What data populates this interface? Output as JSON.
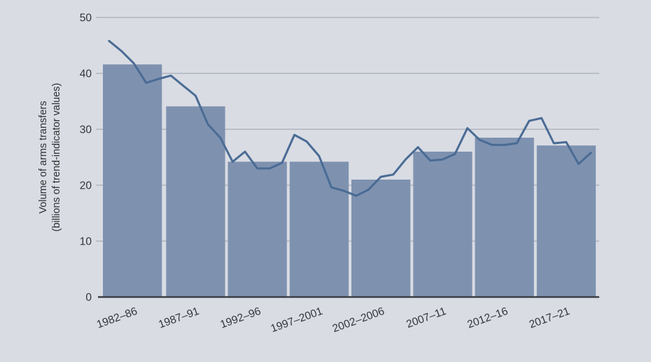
{
  "y_axis_title": {
    "line1": "Volume of arms transfers",
    "line2": "(billions of trend-indicator values)"
  },
  "chart_data": {
    "type": "bar+line",
    "title": "",
    "xlabel": "",
    "ylabel": "Volume of arms transfers (billions of trend-indicator values)",
    "ylim": [
      0,
      50
    ],
    "yticks": [
      0,
      10,
      20,
      30,
      40,
      50
    ],
    "grid": "horizontal",
    "legend": "none",
    "categories": [
      "1982–86",
      "1987–91",
      "1992–96",
      "1997–2001",
      "2002–2006",
      "2007–11",
      "2012–16",
      "2017–21"
    ],
    "bar_values": [
      41.6,
      34.1,
      24.2,
      24.2,
      21.0,
      26.0,
      28.5,
      27.1
    ],
    "line_years": [
      1982,
      1983,
      1984,
      1985,
      1986,
      1987,
      1988,
      1989,
      1990,
      1991,
      1992,
      1993,
      1994,
      1995,
      1996,
      1997,
      1998,
      1999,
      2000,
      2001,
      2002,
      2003,
      2004,
      2005,
      2006,
      2007,
      2008,
      2009,
      2010,
      2011,
      2012,
      2013,
      2014,
      2015,
      2016,
      2017,
      2018,
      2019,
      2020,
      2021
    ],
    "line_values": [
      45.8,
      44.0,
      41.8,
      38.3,
      39.0,
      39.6,
      37.8,
      36.0,
      30.9,
      28.5,
      24.2,
      26.0,
      23.0,
      23.0,
      24.0,
      29.0,
      27.8,
      25.2,
      19.6,
      19.0,
      18.1,
      19.2,
      21.5,
      21.9,
      24.6,
      26.8,
      24.4,
      24.6,
      25.6,
      30.2,
      28.1,
      27.2,
      27.2,
      27.5,
      31.5,
      32.0,
      27.5,
      27.7,
      23.8,
      25.8
    ],
    "colors": {
      "background": "#d9dce3",
      "bar": "#7e92b0",
      "line": "#4a6b94",
      "gridline": "#9aa1ac",
      "axis": "#3a3e45",
      "text": "#333438"
    }
  }
}
